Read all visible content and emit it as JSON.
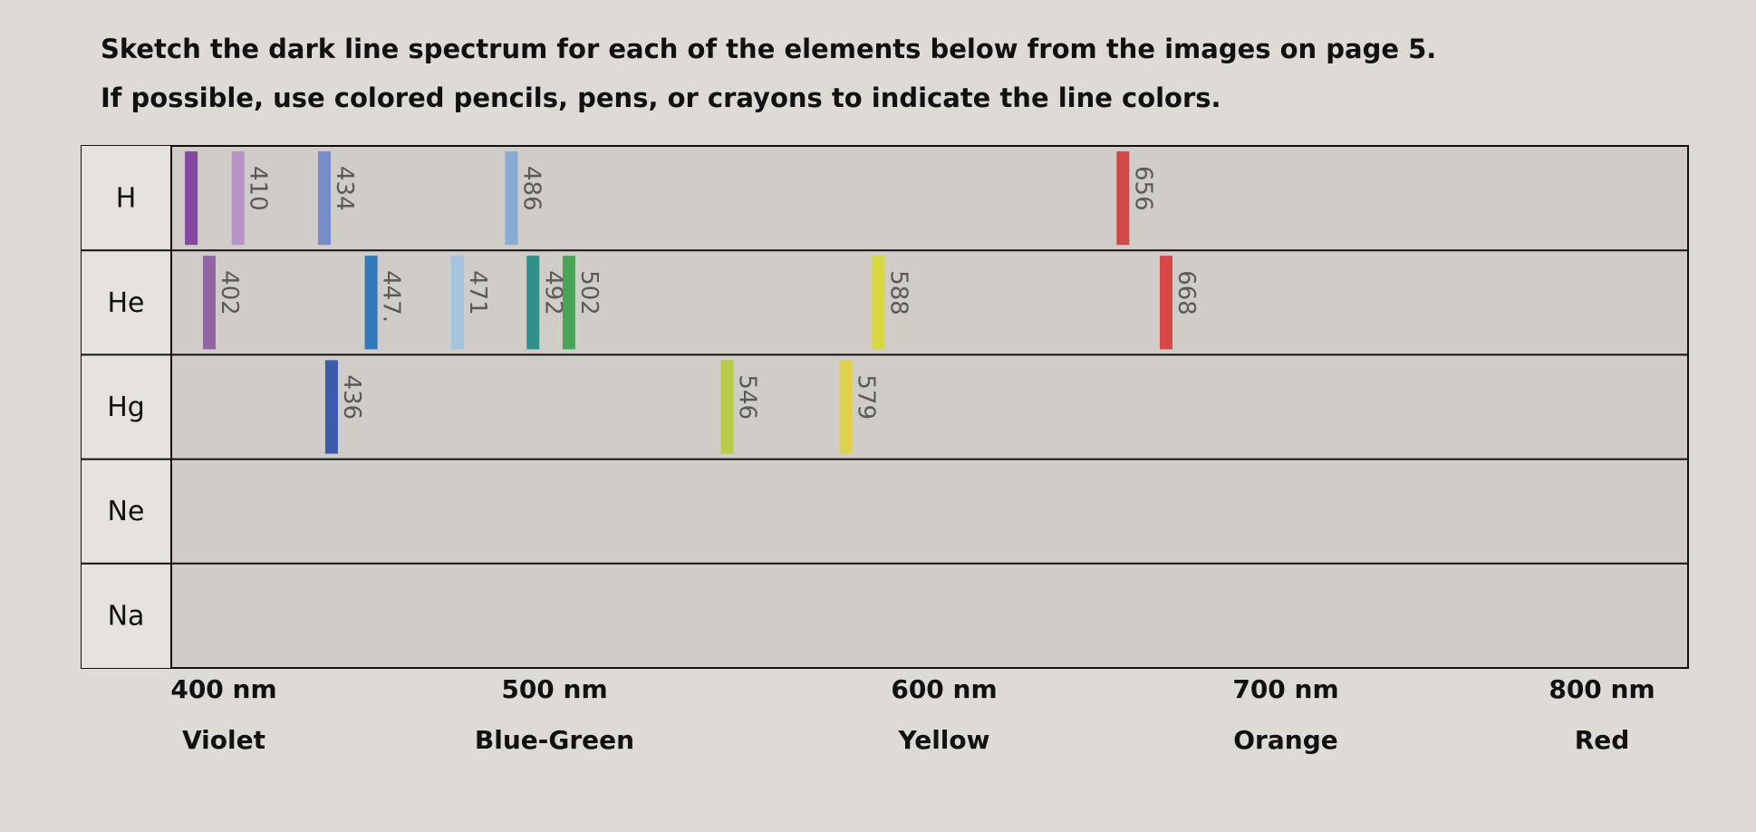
{
  "instructions": [
    "Sketch the dark line spectrum for each of the elements below from the images on page 5.",
    "If possible, use colored pencils, pens, or crayons to indicate the line colors."
  ],
  "rows": [
    {
      "element": "H",
      "lines": [
        {
          "nm": 397,
          "color": "#7b3a9e"
        },
        {
          "nm": 410,
          "label": "410",
          "color": "#b48cc4"
        },
        {
          "nm": 434,
          "label": "434",
          "color": "#6c86c9"
        },
        {
          "nm": 486,
          "label": "486",
          "color": "#7fa9d4"
        },
        {
          "nm": 656,
          "label": "656",
          "color": "#d23a3a"
        }
      ]
    },
    {
      "element": "He",
      "lines": [
        {
          "nm": 402,
          "label": "402",
          "color": "#8a5aa0"
        },
        {
          "nm": 447,
          "label": "447.",
          "color": "#1e6fb8"
        },
        {
          "nm": 471,
          "label": "471",
          "color": "#9cc3e0"
        },
        {
          "nm": 492,
          "label": "492",
          "color": "#1e8a80"
        },
        {
          "nm": 502,
          "label": "502",
          "color": "#3aa04a"
        },
        {
          "nm": 588,
          "label": "588",
          "color": "#d8d830"
        },
        {
          "nm": 668,
          "label": "668",
          "color": "#d83838"
        }
      ]
    },
    {
      "element": "Hg",
      "lines": [
        {
          "nm": 436,
          "label": "436",
          "color": "#2c4fa8"
        },
        {
          "nm": 546,
          "label": "546",
          "color": "#b5cc3a"
        },
        {
          "nm": 579,
          "label": "579",
          "color": "#e0d040"
        }
      ]
    },
    {
      "element": "Ne",
      "lines": []
    },
    {
      "element": "Na",
      "lines": []
    }
  ],
  "axis": [
    {
      "label": "400 nm",
      "color_name": "Violet"
    },
    {
      "label": "500 nm",
      "color_name": "Blue-Green"
    },
    {
      "label": "600 nm",
      "color_name": "Yellow"
    },
    {
      "label": "700 nm",
      "color_name": "Orange"
    },
    {
      "label": "800 nm",
      "color_name": "Red"
    }
  ]
}
